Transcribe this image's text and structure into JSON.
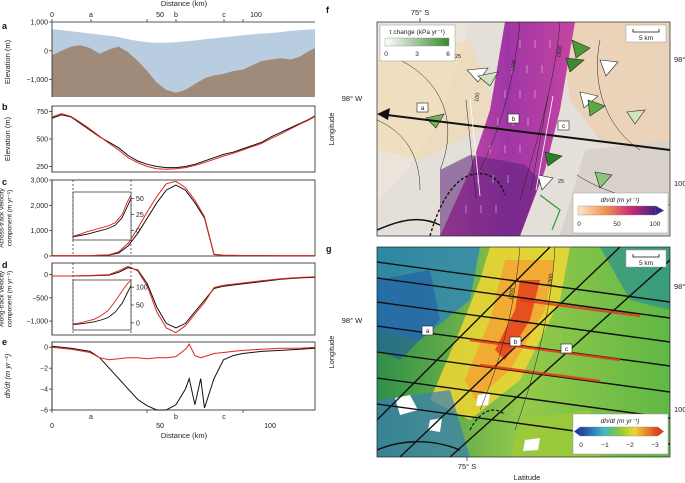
{
  "figure": {
    "top_axis": {
      "xlabel": "Distance (km)",
      "ticks": [
        "0",
        "50",
        "100"
      ],
      "markers": [
        "a",
        "b",
        "c"
      ]
    },
    "panel_labels": [
      "a",
      "b",
      "c",
      "d",
      "e",
      "f",
      "g"
    ],
    "bottom_axis": {
      "xlabel": "Distance (km)",
      "ticks": [
        "0",
        "50",
        "100"
      ],
      "markers": [
        "a",
        "b",
        "c"
      ]
    }
  },
  "chart_data": [
    {
      "panel": "a",
      "type": "area",
      "xlabel": "Distance (km)",
      "ylabel": "Elevation (m)",
      "xlim": [
        0,
        138
      ],
      "ylim": [
        -1600,
        1000
      ],
      "yticks": [
        "1,000",
        "0",
        "−1,000"
      ],
      "x": [
        0,
        5,
        10,
        15,
        20,
        25,
        30,
        35,
        40,
        45,
        50,
        55,
        60,
        65,
        70,
        75,
        80,
        85,
        90,
        95,
        100,
        105,
        110,
        115,
        120,
        125,
        130,
        135,
        138
      ],
      "series": [
        {
          "name": "ice surface",
          "color": "#b8cde0",
          "values": [
            750,
            720,
            680,
            640,
            600,
            560,
            530,
            480,
            400,
            340,
            300,
            280,
            280,
            300,
            330,
            360,
            400,
            430,
            470,
            500,
            540,
            570,
            600,
            620,
            650,
            690,
            720,
            740,
            750
          ]
        },
        {
          "name": "bed",
          "color": "#a08a7a",
          "values": [
            -150,
            0,
            150,
            200,
            100,
            -100,
            50,
            150,
            -50,
            -350,
            -700,
            -1100,
            -1350,
            -1450,
            -1350,
            -1150,
            -950,
            -850,
            -800,
            -700,
            -650,
            -500,
            -350,
            -300,
            -250,
            -300,
            -200,
            0,
            100
          ]
        }
      ]
    },
    {
      "panel": "b",
      "type": "line",
      "xlabel": "Distance (km)",
      "ylabel": "Elevation (m)",
      "xlim": [
        0,
        138
      ],
      "ylim": [
        200,
        800
      ],
      "yticks": [
        "750",
        "500",
        "250"
      ],
      "x": [
        0,
        5,
        10,
        15,
        20,
        25,
        30,
        35,
        40,
        45,
        50,
        55,
        60,
        65,
        70,
        75,
        80,
        85,
        90,
        95,
        100,
        105,
        110,
        115,
        120,
        125,
        130,
        135,
        138
      ],
      "series": [
        {
          "name": "black",
          "color": "#111111",
          "values": [
            690,
            720,
            700,
            640,
            580,
            520,
            470,
            420,
            350,
            300,
            270,
            250,
            240,
            240,
            250,
            270,
            300,
            330,
            360,
            380,
            410,
            440,
            470,
            520,
            560,
            600,
            640,
            680,
            710
          ]
        },
        {
          "name": "red",
          "color": "#e0251b",
          "values": [
            700,
            730,
            705,
            650,
            590,
            525,
            460,
            400,
            330,
            285,
            250,
            230,
            225,
            230,
            240,
            260,
            285,
            315,
            345,
            370,
            400,
            430,
            460,
            505,
            545,
            590,
            635,
            675,
            705
          ]
        }
      ]
    },
    {
      "panel": "c",
      "type": "line",
      "xlabel": "Distance (km)",
      "ylabel": "Across-track velocity component (m yr⁻¹)",
      "xlim": [
        0,
        138
      ],
      "ylim": [
        0,
        3000
      ],
      "yticks": [
        "3,000",
        "2,000",
        "1,000",
        "0"
      ],
      "x": [
        0,
        10,
        20,
        30,
        35,
        40,
        45,
        50,
        55,
        60,
        65,
        70,
        75,
        80,
        85,
        90,
        100,
        110,
        120,
        130,
        138
      ],
      "series": [
        {
          "name": "black",
          "color": "#111111",
          "values": [
            10,
            10,
            15,
            40,
            120,
            400,
            900,
            1500,
            2100,
            2600,
            2800,
            2600,
            2100,
            1500,
            60,
            30,
            20,
            15,
            10,
            10,
            10
          ]
        },
        {
          "name": "red",
          "color": "#e0251b",
          "values": [
            10,
            10,
            15,
            50,
            160,
            500,
            1100,
            1750,
            2350,
            2850,
            2950,
            2700,
            2200,
            1550,
            70,
            30,
            20,
            15,
            10,
            10,
            10
          ]
        }
      ],
      "inset": {
        "yticks": [
          "50",
          "25",
          "0"
        ],
        "ylim": [
          -15,
          60
        ],
        "xlim": [
          0,
          33
        ],
        "x": [
          0,
          4,
          8,
          12,
          16,
          20,
          24,
          28,
          31,
          33
        ],
        "series": [
          {
            "name": "black",
            "color": "#111111",
            "values": [
              -10,
              -8,
              -6,
              -3,
              0,
              3,
              8,
              20,
              38,
              50
            ]
          },
          {
            "name": "red",
            "color": "#e0251b",
            "values": [
              -9,
              -6,
              -2,
              1,
              4,
              7,
              12,
              25,
              45,
              55
            ]
          }
        ]
      }
    },
    {
      "panel": "d",
      "type": "line",
      "xlabel": "Distance (km)",
      "ylabel": "Along-track velocity component (m yr⁻¹)",
      "xlim": [
        0,
        138
      ],
      "ylim": [
        -1300,
        250
      ],
      "yticks": [
        "0",
        "−500",
        "−1,000"
      ],
      "x": [
        0,
        10,
        20,
        30,
        35,
        40,
        45,
        50,
        55,
        60,
        65,
        70,
        75,
        80,
        85,
        90,
        100,
        110,
        120,
        130,
        138
      ],
      "series": [
        {
          "name": "black",
          "color": "#111111",
          "values": [
            -30,
            -30,
            -25,
            -10,
            50,
            150,
            100,
            -200,
            -700,
            -1050,
            -1150,
            -1050,
            -800,
            -550,
            -300,
            -250,
            -200,
            -150,
            -100,
            -70,
            -60
          ]
        },
        {
          "name": "red",
          "color": "#e0251b",
          "values": [
            -30,
            -30,
            -20,
            0,
            80,
            180,
            80,
            -250,
            -800,
            -1150,
            -1250,
            -1100,
            -850,
            -600,
            -280,
            -230,
            -180,
            -130,
            -90,
            -60,
            -50
          ]
        }
      ],
      "inset": {
        "yticks": [
          "100",
          "50",
          "0"
        ],
        "ylim": [
          -20,
          120
        ],
        "xlim": [
          0,
          33
        ],
        "x": [
          0,
          4,
          8,
          12,
          16,
          20,
          24,
          28,
          31,
          33
        ],
        "series": [
          {
            "name": "black",
            "color": "#111111",
            "values": [
              -5,
              -3,
              0,
              3,
              8,
              15,
              30,
              55,
              85,
              105
            ]
          },
          {
            "name": "red",
            "color": "#e0251b",
            "values": [
              -3,
              0,
              5,
              10,
              20,
              35,
              60,
              90,
              110,
              118
            ]
          }
        ]
      }
    },
    {
      "panel": "e",
      "type": "line",
      "xlabel": "Distance (km)",
      "ylabel": "dh/dt (m yr⁻¹)",
      "xlim": [
        0,
        138
      ],
      "ylim": [
        -6,
        0.5
      ],
      "yticks": [
        "0",
        "−2",
        "−4",
        "−6"
      ],
      "x": [
        0,
        10,
        20,
        25,
        30,
        35,
        40,
        45,
        50,
        55,
        60,
        65,
        70,
        72,
        75,
        78,
        80,
        85,
        90,
        95,
        100,
        110,
        120,
        130,
        138
      ],
      "series": [
        {
          "name": "black",
          "color": "#111111",
          "values": [
            0.1,
            -0.1,
            -0.4,
            -1.0,
            -2.0,
            -3.0,
            -4.0,
            -5.0,
            -5.6,
            -6.0,
            -6.0,
            -5.5,
            -4.0,
            -3.0,
            -5.5,
            -3.0,
            -5.8,
            -3.0,
            -1.2,
            -0.8,
            -0.6,
            -0.4,
            -0.3,
            -0.2,
            -0.1
          ]
        },
        {
          "name": "red",
          "color": "#e0251b",
          "values": [
            0.0,
            -0.2,
            -0.5,
            -1.0,
            -1.2,
            -1.1,
            -1.0,
            -1.0,
            -1.1,
            -1.0,
            -1.0,
            -0.9,
            -0.2,
            0.3,
            -0.8,
            -1.0,
            -0.9,
            -0.6,
            -0.5,
            -0.4,
            -0.3,
            -0.2,
            -0.1,
            -0.1,
            0.0
          ]
        }
      ]
    },
    {
      "panel": "f",
      "type": "heatmap",
      "title_top": "75° S",
      "ylabel": "Longitude",
      "lat_labels": [
        "98° W",
        "98° W",
        "100° W"
      ],
      "scalebar": "5 km",
      "legend_tau": {
        "title": "τ change (kPa yr⁻¹)",
        "ticks": [
          "0",
          "3",
          "6"
        ]
      },
      "colorbar": {
        "title": "dh/dt (m yr⁻¹)",
        "ticks": [
          "0",
          "50",
          "100"
        ]
      },
      "contours": [
        "1000",
        "1500",
        "25",
        "100",
        "25"
      ],
      "profile_markers": [
        "a",
        "b",
        "c"
      ]
    },
    {
      "panel": "g",
      "type": "heatmap",
      "ylabel": "Longitude",
      "xlabel": "Latitude",
      "title_bottom": "75° S",
      "lat_labels": [
        "98° W",
        "98° W",
        "100° W"
      ],
      "scalebar": "5 km",
      "colorbar": {
        "title": "dh/dt (m yr⁻¹)",
        "ticks": [
          "0",
          "−1",
          "−2",
          "−3"
        ]
      },
      "contours": [
        "1000",
        "1500"
      ],
      "profile_markers": [
        "a",
        "b",
        "c"
      ]
    }
  ]
}
